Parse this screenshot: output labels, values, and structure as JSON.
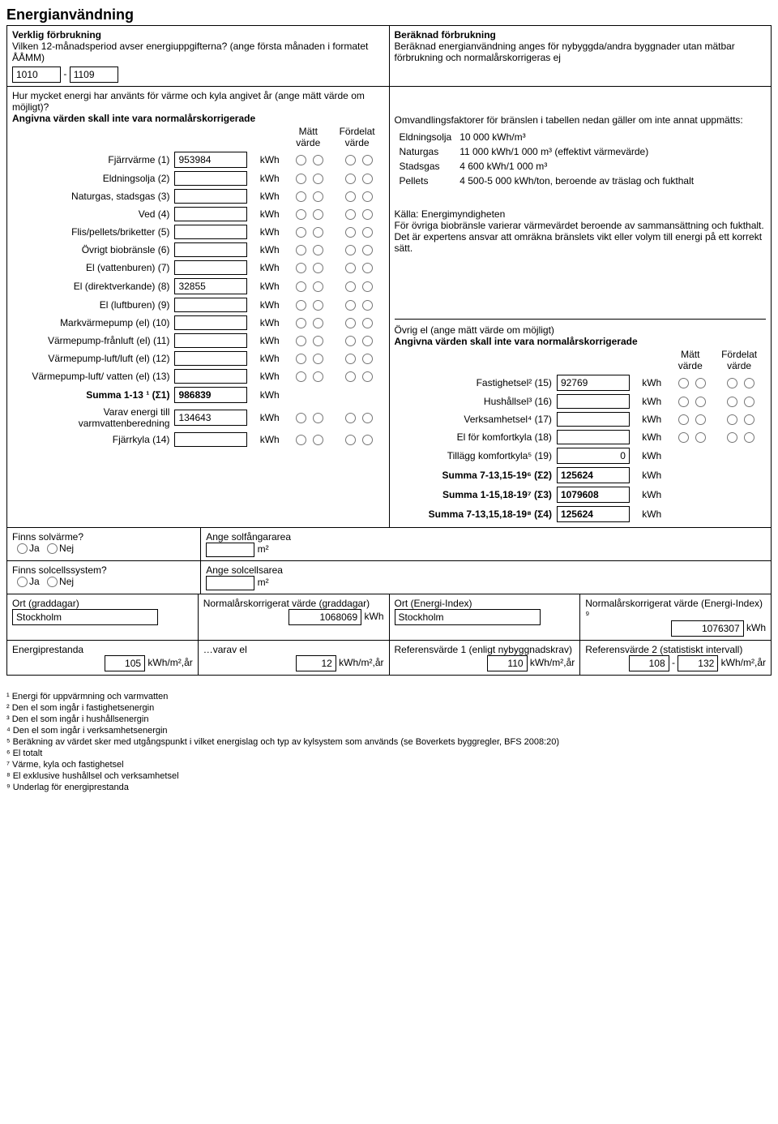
{
  "title": "Energianvändning",
  "left_header": {
    "sub": "Verklig förbrukning",
    "q": "Vilken 12-månadsperiod avser energiuppgifterna? (ange första månaden i formatet ÅÅMM)",
    "period_from": "1010",
    "sep": "-",
    "period_to": "1109"
  },
  "right_header": {
    "sub": "Beräknad förbrukning",
    "desc": "Beräknad energianvändning anges för nybyggda/andra byggnader utan mätbar förbrukning och normalårskorrigeras ej"
  },
  "q2": "Hur mycket energi har använts för värme och kyla angivet år (ange mätt värde om möjligt)?",
  "q2b": "Angivna värden skall inte vara normalårskorrigerade",
  "col_matt": "Mätt värde",
  "col_fordelat": "Fördelat värde",
  "unit_kwh": "kWh",
  "rows": [
    {
      "label": "Fjärrvärme (1)",
      "value": "953984"
    },
    {
      "label": "Eldningsolja (2)",
      "value": ""
    },
    {
      "label": "Naturgas, stadsgas (3)",
      "value": ""
    },
    {
      "label": "Ved (4)",
      "value": ""
    },
    {
      "label": "Flis/pellets/briketter (5)",
      "value": ""
    },
    {
      "label": "Övrigt biobränsle (6)",
      "value": ""
    },
    {
      "label": "El (vattenburen) (7)",
      "value": ""
    },
    {
      "label": "El (direktverkande) (8)",
      "value": "32855"
    },
    {
      "label": "El (luftburen) (9)",
      "value": ""
    },
    {
      "label": "Markvärmepump (el) (10)",
      "value": ""
    },
    {
      "label": "Värmepump-frånluft (el) (11)",
      "value": ""
    },
    {
      "label": "Värmepump-luft/luft (el) (12)",
      "value": ""
    },
    {
      "label": "Värmepump-luft/ vatten (el) (13)",
      "value": ""
    }
  ],
  "summa113": {
    "label": "Summa 1-13 ¹ (Σ1)",
    "value": "986839"
  },
  "varav": {
    "label": "Varav energi till varmvattenberedning",
    "value": "134643"
  },
  "fjarrkyla": {
    "label": "Fjärrkyla (14)",
    "value": ""
  },
  "conv": {
    "intro": "Omvandlingsfaktorer för bränslen i tabellen nedan gäller om inte annat uppmätts:",
    "items": [
      {
        "k": "Eldningsolja",
        "v": "10 000 kWh/m³"
      },
      {
        "k": "Naturgas",
        "v": "11 000 kWh/1 000 m³ (effektivt värmevärde)"
      },
      {
        "k": "Stadsgas",
        "v": "4 600 kWh/1 000 m³"
      },
      {
        "k": "Pellets",
        "v": "4 500-5 000 kWh/ton, beroende av träslag och fukthalt"
      }
    ],
    "source": "Källa: Energimyndigheten",
    "note": "För övriga biobränsle varierar värmevärdet beroende av sammansättning och fukthalt. Det är expertens ansvar att omräkna bränslets vikt eller volym till energi på ett korrekt sätt."
  },
  "ovrig_el": {
    "title": "Övrig el (ange mätt värde om möjligt)",
    "sub": "Angivna värden skall inte vara normalårskorrigerade",
    "rows": [
      {
        "label": "Fastighetsel² (15)",
        "value": "92769"
      },
      {
        "label": "Hushållsel³ (16)",
        "value": ""
      },
      {
        "label": "Verksamhetsel⁴ (17)",
        "value": ""
      },
      {
        "label": "El för komfortkyla (18)",
        "value": ""
      }
    ],
    "tillagg": {
      "label": "Tillägg komfortkyla⁵ (19)",
      "value": "0"
    },
    "s2": {
      "label": "Summa 7-13,15-19⁶ (Σ2)",
      "value": "125624"
    },
    "s3": {
      "label": "Summa 1-15,18-19⁷ (Σ3)",
      "value": "1079608"
    },
    "s4": {
      "label": "Summa 7-13,15,18-19⁸ (Σ4)",
      "value": "125624"
    }
  },
  "solar": {
    "q1": "Finns solvärme?",
    "q2": "Finns solcellssystem?",
    "ja": "Ja",
    "nej": "Nej",
    "a1": "Ange solfångararea",
    "a2": "Ange solcellsarea",
    "unit": "m²"
  },
  "bottom1": {
    "ort_grad": "Ort (graddagar)",
    "ort_grad_v": "Stockholm",
    "norm_grad": "Normalårskorrigerat värde (graddagar)",
    "norm_grad_v": "1068069",
    "ort_ei": "Ort (Energi-Index)",
    "ort_ei_v": "Stockholm",
    "norm_ei": "Normalårskorrigerat värde (Energi-Index) ⁹",
    "norm_ei_v": "1076307"
  },
  "bottom2": {
    "ep": "Energiprestanda",
    "ep_v": "105",
    "varav": "…varav el",
    "varav_v": "12",
    "ref1": "Referensvärde 1 (enligt nybyggnadskrav)",
    "ref1_v": "110",
    "ref2": "Referensvärde 2 (statistiskt intervall)",
    "ref2_a": "108",
    "ref2_b": "132",
    "unit": "kWh/m²,år"
  },
  "footnotes": [
    "¹ Energi för uppvärmning och varmvatten",
    "² Den el som ingår i fastighetsenergin",
    "³ Den el som ingår i hushållsenergin",
    "⁴ Den el som ingår i verksamhetsenergin",
    "⁵ Beräkning av värdet sker med utgångspunkt i vilket energislag och typ av kylsystem som används (se Boverkets byggregler, BFS 2008:20)",
    "⁶ El totalt",
    "⁷ Värme, kyla och fastighetsel",
    "⁸ El exklusive hushållsel och verksamhetsel",
    "⁹ Underlag för energiprestanda"
  ]
}
